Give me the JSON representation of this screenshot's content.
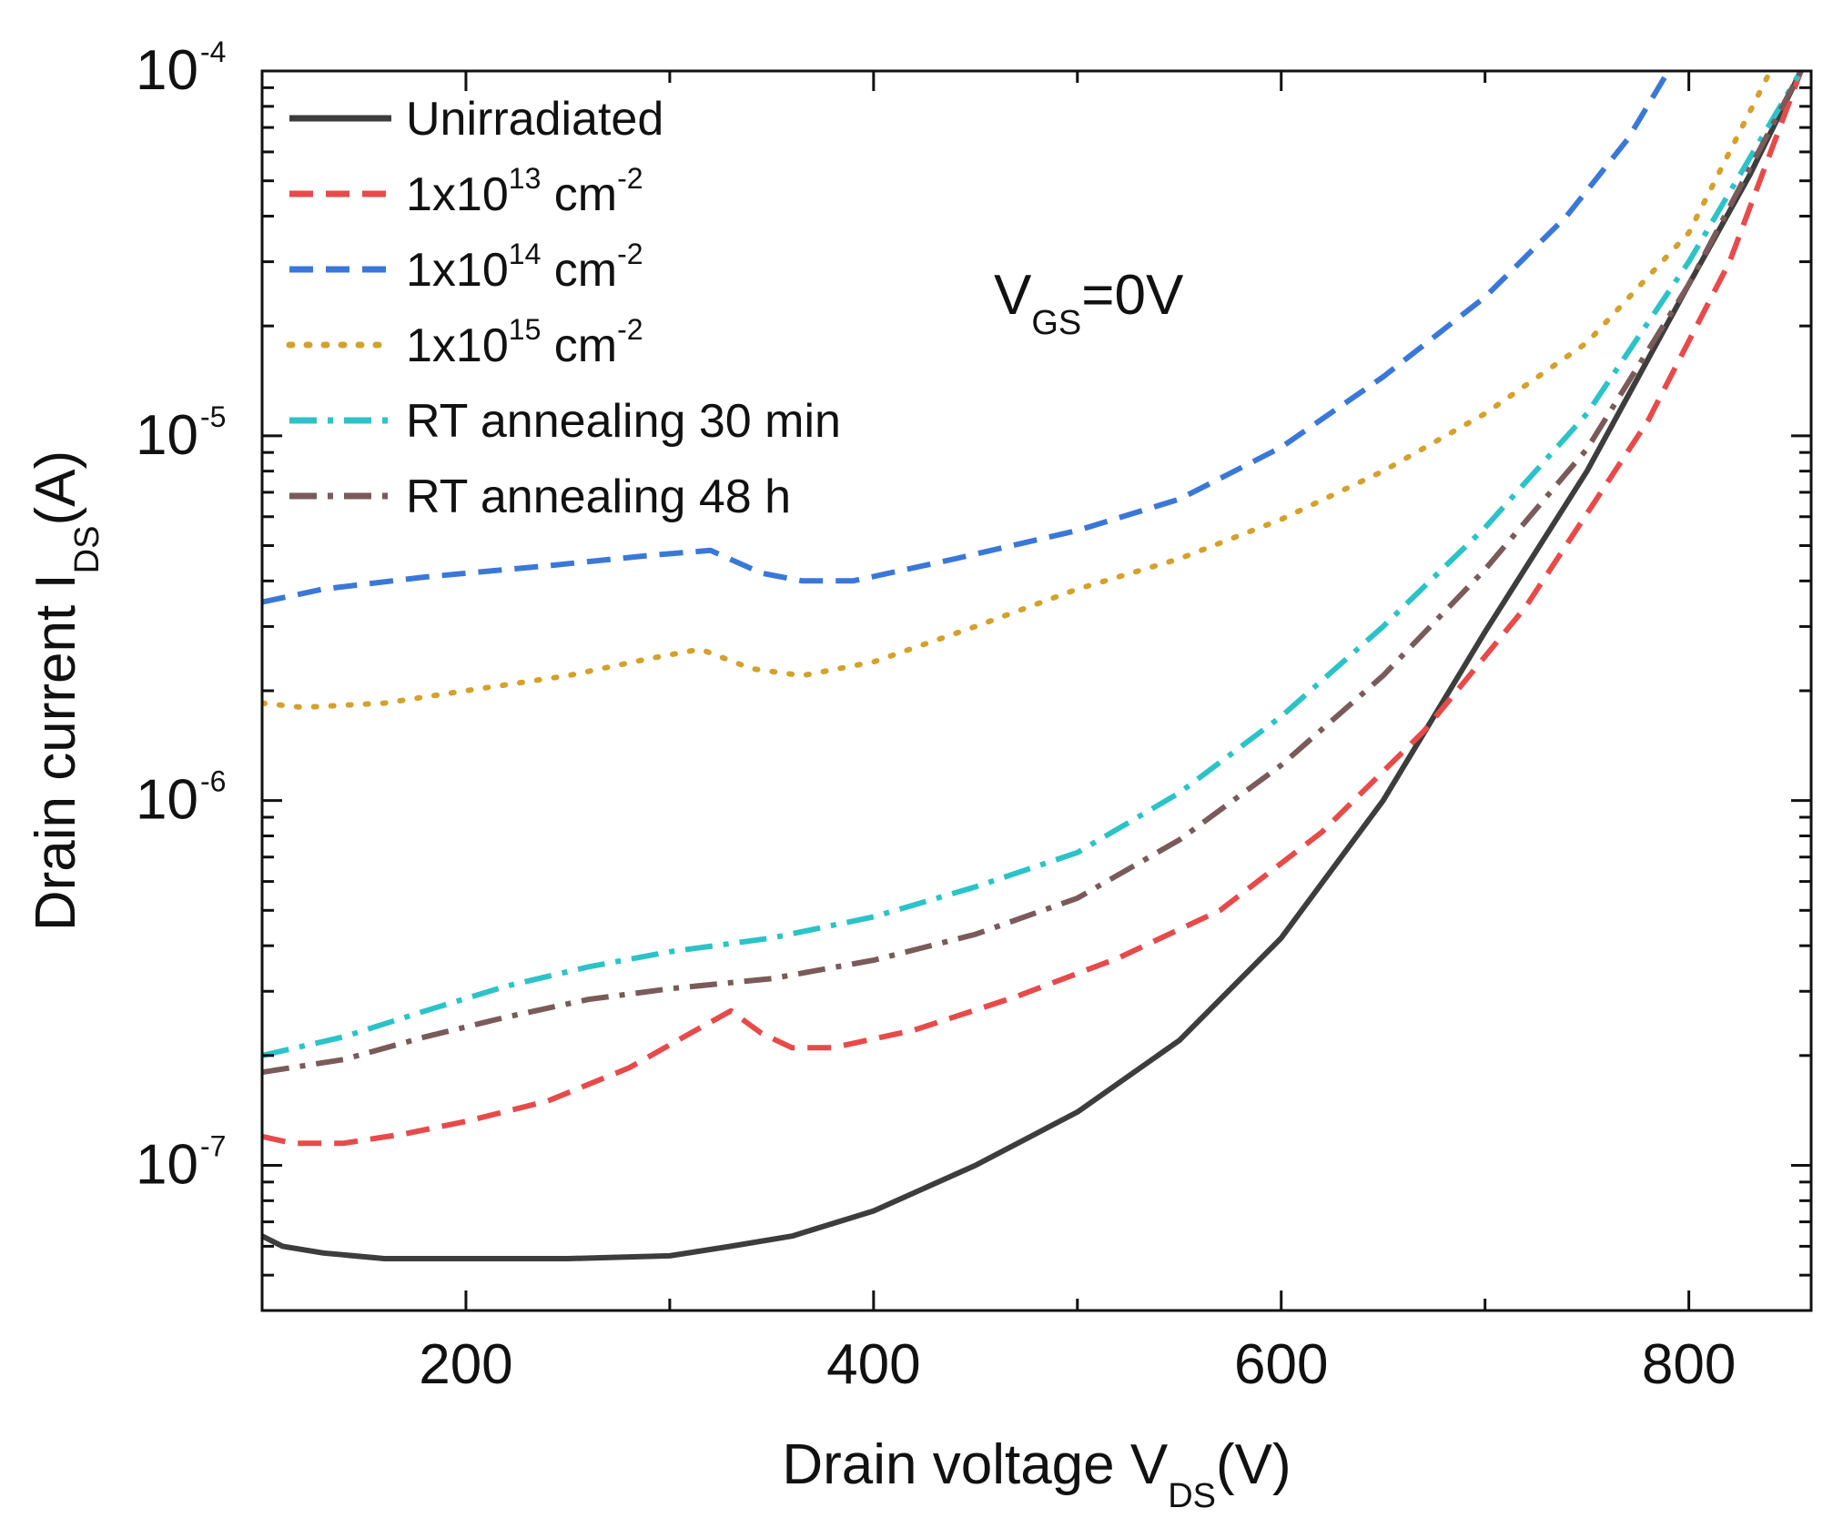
{
  "chart_data": {
    "type": "line",
    "title": "",
    "xlabel": {
      "main": "Drain voltage V",
      "sub": "DS",
      "tail": "(V)"
    },
    "ylabel": {
      "main": "Drain current I",
      "sub": "DS",
      "tail": "(A)"
    },
    "xlim": [
      100,
      860
    ],
    "ylim": [
      4e-08,
      0.0001
    ],
    "yscale": "log",
    "x_ticks": [
      {
        "value": 200,
        "label": "200"
      },
      {
        "value": 400,
        "label": "400"
      },
      {
        "value": 600,
        "label": "600"
      },
      {
        "value": 800,
        "label": "800"
      }
    ],
    "y_ticks": [
      {
        "value": 1e-07,
        "base": "10",
        "exp": "-7"
      },
      {
        "value": 1e-06,
        "base": "10",
        "exp": "-6"
      },
      {
        "value": 1e-05,
        "base": "10",
        "exp": "-5"
      },
      {
        "value": 0.0001,
        "base": "10",
        "exp": "-4"
      }
    ],
    "annotation": {
      "main": "V",
      "sub": "GS",
      "tail": "=0V"
    },
    "legend_position": "top-left",
    "series": [
      {
        "name": "Unirradiated",
        "legend": {
          "text": "Unirradiated",
          "sup": "",
          "tail": ""
        },
        "color": "#3d3d3d",
        "dash": "solid",
        "x": [
          100,
          110,
          130,
          160,
          200,
          250,
          300,
          330,
          360,
          400,
          450,
          500,
          550,
          600,
          650,
          700,
          750,
          800,
          830,
          855
        ],
        "y": [
          6.4e-08,
          6e-08,
          5.75e-08,
          5.55e-08,
          5.55e-08,
          5.55e-08,
          5.65e-08,
          6e-08,
          6.4e-08,
          7.5e-08,
          1e-07,
          1.4e-07,
          2.2e-07,
          4.2e-07,
          1e-06,
          2.9e-06,
          8e-06,
          2.6e-05,
          5.2e-05,
          0.0001
        ]
      },
      {
        "name": "1x10^13 cm^-2",
        "legend": {
          "text": "1x10",
          "sup": "13",
          "tail": " cm",
          "sup2": "-2"
        },
        "color": "#e84a4a",
        "dash": "dash",
        "x": [
          100,
          115,
          140,
          170,
          200,
          240,
          280,
          310,
          330,
          345,
          360,
          380,
          420,
          470,
          520,
          570,
          620,
          670,
          720,
          780,
          820,
          855
        ],
        "y": [
          1.2e-07,
          1.15e-07,
          1.15e-07,
          1.22e-07,
          1.32e-07,
          1.5e-07,
          1.85e-07,
          2.3e-07,
          2.65e-07,
          2.3e-07,
          2.1e-07,
          2.1e-07,
          2.35e-07,
          2.9e-07,
          3.7e-07,
          5e-07,
          8.2e-07,
          1.55e-06,
          3.4e-06,
          1.1e-05,
          3e-05,
          0.0001
        ]
      },
      {
        "name": "1x10^14 cm^-2",
        "legend": {
          "text": "1x10",
          "sup": "14",
          "tail": " cm",
          "sup2": "-2"
        },
        "color": "#3a78d8",
        "dash": "dash",
        "x": [
          100,
          130,
          180,
          240,
          290,
          320,
          345,
          365,
          390,
          440,
          500,
          550,
          600,
          650,
          700,
          740,
          770,
          790
        ],
        "y": [
          3.5e-06,
          3.8e-06,
          4.1e-06,
          4.4e-06,
          4.7e-06,
          4.85e-06,
          4.2e-06,
          4e-06,
          4e-06,
          4.6e-06,
          5.5e-06,
          6.7e-06,
          9.3e-06,
          1.45e-05,
          2.4e-05,
          4e-05,
          6.5e-05,
          0.0001
        ]
      },
      {
        "name": "1x10^15 cm^-2",
        "legend": {
          "text": "1x10",
          "sup": "15",
          "tail": " cm",
          "sup2": "-2"
        },
        "color": "#d4a12c",
        "dash": "dot",
        "x": [
          100,
          120,
          160,
          200,
          250,
          290,
          315,
          340,
          365,
          400,
          450,
          500,
          550,
          600,
          650,
          700,
          750,
          800,
          840
        ],
        "y": [
          1.85e-06,
          1.8e-06,
          1.85e-06,
          2e-06,
          2.2e-06,
          2.45e-06,
          2.6e-06,
          2.3e-06,
          2.2e-06,
          2.4e-06,
          3e-06,
          3.8e-06,
          4.6e-06,
          5.9e-06,
          8e-06,
          1.15e-05,
          1.8e-05,
          3.6e-05,
          0.0001
        ]
      },
      {
        "name": "RT annealing 30 min",
        "legend": {
          "text": "RT annealing 30 min",
          "sup": "",
          "tail": ""
        },
        "color": "#2cc3c8",
        "dash": "dashdot",
        "x": [
          100,
          140,
          180,
          220,
          260,
          300,
          350,
          400,
          450,
          500,
          550,
          600,
          650,
          700,
          750,
          800,
          855
        ],
        "y": [
          2e-07,
          2.25e-07,
          2.65e-07,
          3.1e-07,
          3.5e-07,
          3.85e-07,
          4.2e-07,
          4.8e-07,
          5.8e-07,
          7.2e-07,
          1.05e-06,
          1.7e-06,
          3e-06,
          5.6e-06,
          1.15e-05,
          3e-05,
          0.0001
        ]
      },
      {
        "name": "RT annealing 48 h",
        "legend": {
          "text": "RT annealing 48 h",
          "sup": "",
          "tail": ""
        },
        "color": "#7a5a5a",
        "dash": "dashdot",
        "x": [
          100,
          140,
          180,
          220,
          260,
          300,
          350,
          400,
          450,
          500,
          550,
          600,
          650,
          700,
          750,
          800,
          855
        ],
        "y": [
          1.8e-07,
          1.95e-07,
          2.25e-07,
          2.55e-07,
          2.85e-07,
          3.05e-07,
          3.25e-07,
          3.65e-07,
          4.3e-07,
          5.4e-07,
          7.8e-07,
          1.25e-06,
          2.2e-06,
          4.3e-06,
          9.2e-06,
          2.6e-05,
          0.0001
        ]
      }
    ]
  }
}
